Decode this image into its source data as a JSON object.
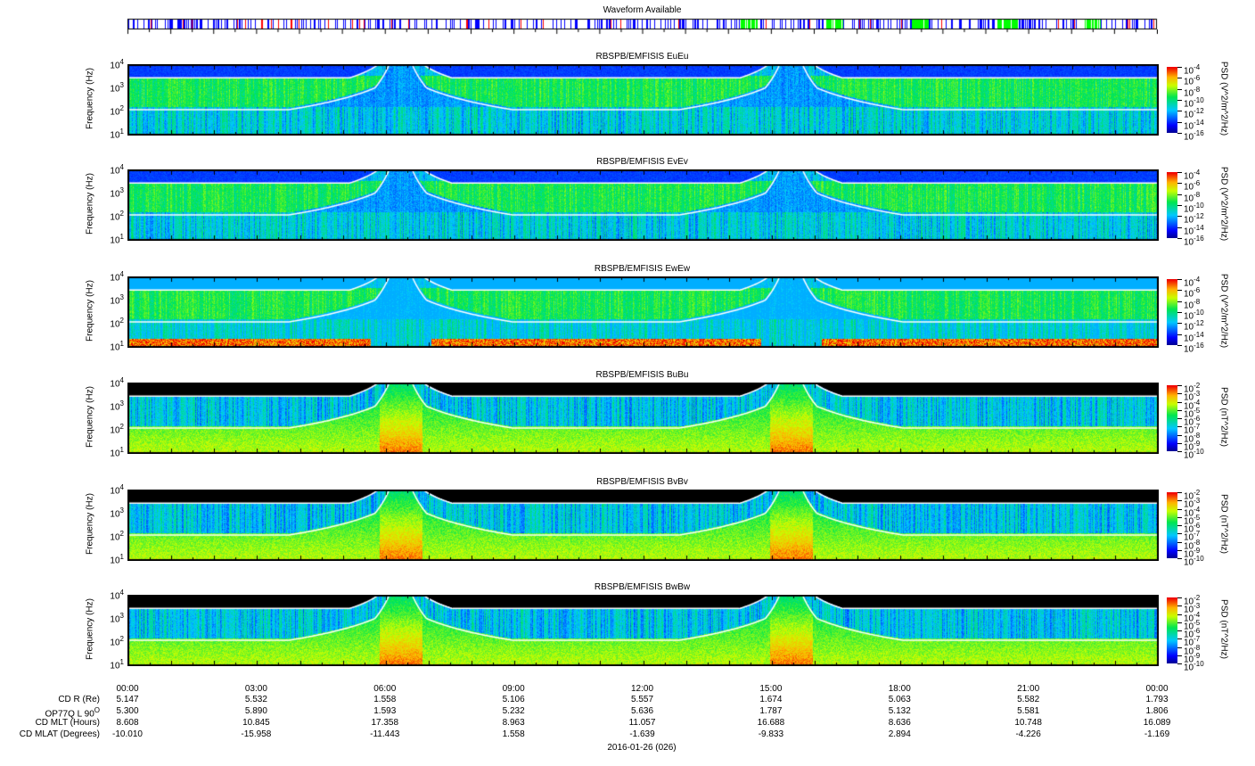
{
  "waveform": {
    "title": "Waveform Available",
    "colors": {
      "burst": "#0000ff",
      "survey": "#ff0000",
      "continuous": "#00ff00"
    }
  },
  "chart_data": {
    "type": "heatmap",
    "x_ticks": [
      "00:00",
      "03:00",
      "06:00",
      "09:00",
      "12:00",
      "15:00",
      "18:00",
      "21:00",
      "00:00"
    ],
    "date_label": "2016-01-26 (026)",
    "ylabel": "Frequency (Hz)",
    "y_scale": "log",
    "ylim": [
      10,
      10000
    ],
    "colormap": "rainbow",
    "panels": [
      {
        "title": "RBSPB/EMFISIS  EuEu",
        "kind": "E",
        "cb_label": "PSD (V^2/m^2/Hz)",
        "cb_ticks": [
          "-4",
          "-6",
          "-8",
          "-10",
          "-12",
          "-14",
          "-16"
        ]
      },
      {
        "title": "RBSPB/EMFISIS  EvEv",
        "kind": "E",
        "cb_label": "PSD (V^2/m^2/Hz)",
        "cb_ticks": [
          "-4",
          "-6",
          "-8",
          "-10",
          "-12",
          "-14",
          "-16"
        ]
      },
      {
        "title": "RBSPB/EMFISIS  EwEw",
        "kind": "W",
        "cb_label": "PSD (V^2/m^2/Hz)",
        "cb_ticks": [
          "-4",
          "-6",
          "-8",
          "-10",
          "-12",
          "-14",
          "-16"
        ]
      },
      {
        "title": "RBSPB/EMFISIS  BuBu",
        "kind": "B",
        "cb_label": "PSD (nT^2/Hz)",
        "cb_ticks": [
          "-2",
          "-3",
          "-4",
          "-5",
          "-6",
          "-7",
          "-8",
          "-9",
          "-10"
        ]
      },
      {
        "title": "RBSPB/EMFISIS  BvBv",
        "kind": "B",
        "cb_label": "PSD (nT^2/Hz)",
        "cb_ticks": [
          "-2",
          "-3",
          "-4",
          "-5",
          "-6",
          "-7",
          "-8",
          "-9",
          "-10"
        ]
      },
      {
        "title": "RBSPB/EMFISIS  BwBw",
        "kind": "B",
        "cb_label": "PSD (nT^2/Hz)",
        "cb_ticks": [
          "-2",
          "-3",
          "-4",
          "-5",
          "-6",
          "-7",
          "-8",
          "-9",
          "-10"
        ]
      }
    ],
    "y_ticks": [
      "1",
      "2",
      "3",
      "4"
    ],
    "ephemeris": [
      {
        "label": "CD R (Re)",
        "values": [
          "5.147",
          "5.532",
          "1.558",
          "5.106",
          "5.557",
          "1.674",
          "5.063",
          "5.582",
          "1.793"
        ]
      },
      {
        "label": "OP77Q L 90",
        "sup": "O",
        "values": [
          "5.300",
          "5.890",
          "1.593",
          "5.232",
          "5.636",
          "1.787",
          "5.132",
          "5.581",
          "1.806"
        ]
      },
      {
        "label": "CD MLT (Hours)",
        "values": [
          "8.608",
          "10.845",
          "17.358",
          "8.963",
          "11.057",
          "16.688",
          "8.636",
          "10.748",
          "16.089"
        ]
      },
      {
        "label": "CD MLAT (Degrees)",
        "values": [
          "-10.010",
          "-15.958",
          "-11.443",
          "1.558",
          "-1.639",
          "-9.833",
          "2.894",
          "-4.226",
          "-1.169"
        ]
      }
    ]
  }
}
